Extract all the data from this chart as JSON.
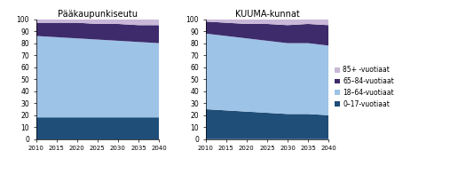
{
  "years": [
    2010,
    2015,
    2020,
    2025,
    2030,
    2035,
    2040
  ],
  "pks": {
    "title": "Pääkaupunkiseutu",
    "0_17": [
      18,
      18,
      18,
      18,
      18,
      18,
      18
    ],
    "18_64": [
      68,
      67,
      66,
      65,
      64,
      63,
      62
    ],
    "65_84": [
      11,
      12,
      13,
      13,
      14,
      14,
      15
    ],
    "85plus": [
      3,
      3,
      3,
      4,
      4,
      5,
      5
    ]
  },
  "kuuma": {
    "title": "KUUMA-kunnat",
    "0_17": [
      25,
      24,
      23,
      22,
      21,
      21,
      20
    ],
    "18_64": [
      63,
      62,
      61,
      60,
      59,
      59,
      58
    ],
    "65_84": [
      10,
      11,
      12,
      14,
      15,
      16,
      17
    ],
    "85plus": [
      2,
      3,
      4,
      4,
      5,
      5,
      5
    ]
  },
  "colors": {
    "0_17": "#1f4e79",
    "18_64": "#9dc3e6",
    "65_84": "#3d2b6b",
    "85plus": "#c9b8d8"
  },
  "legend_labels": [
    "85+ -vuotiaat",
    "65–84-vuotiaat",
    "18–64-vuotiaat",
    "0–17-vuotiaat"
  ],
  "ylim": [
    0,
    100
  ],
  "yticks": [
    0,
    10,
    20,
    30,
    40,
    50,
    60,
    70,
    80,
    90,
    100
  ],
  "background_color": "#ffffff"
}
